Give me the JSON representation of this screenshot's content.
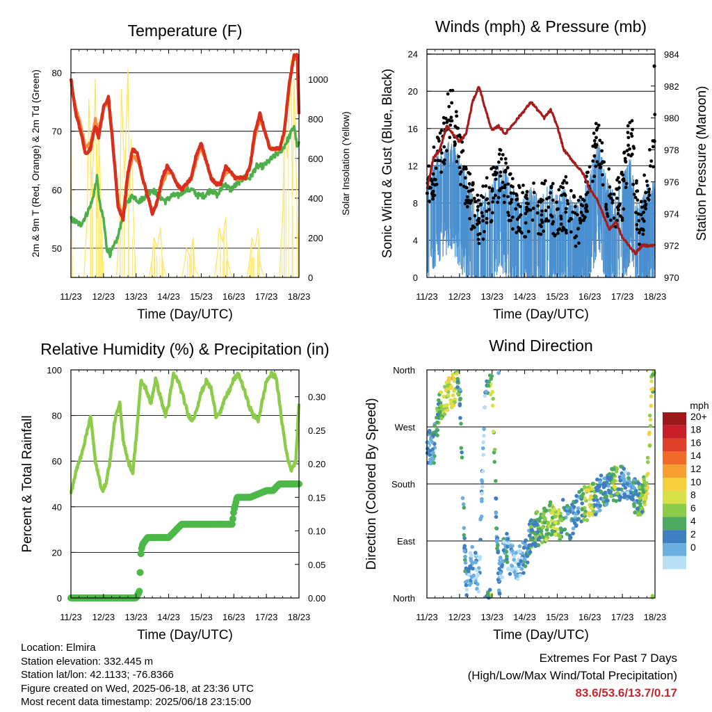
{
  "colors": {
    "temp_red": "#d7301f",
    "temp_orange": "#fb8c3c",
    "td_green": "#4daf4a",
    "solar_yellow": "#ffe45c",
    "gust_black": "#000000",
    "wind_blue": "#4a90d0",
    "pressure_maroon": "#a51c1c",
    "rh_green": "#8ccc4a",
    "rain_green": "#4cb848"
  },
  "chart_data": [
    {
      "type": "line",
      "title": "Temperature (F)",
      "xlabel": "Time (Day/UTC)",
      "ylabel": "2m & 9m T (Red, Orange) & 2m Td (Green)",
      "ylabel_right": "Solar Insolation (Yellow)",
      "x_ticks": [
        "11/23",
        "12/23",
        "13/23",
        "14/23",
        "15/23",
        "16/23",
        "17/23",
        "18/23"
      ],
      "ylim": [
        45,
        84
      ],
      "y_ticks": [
        50,
        60,
        70,
        80
      ],
      "ylim_right": [
        0,
        1150
      ],
      "y_ticks_right": [
        0,
        200,
        400,
        600,
        800,
        1000
      ],
      "grid": true,
      "series": [
        {
          "role": "temp_2m",
          "x": [
            0,
            0.15,
            0.3,
            0.45,
            0.6,
            0.75,
            0.85,
            1.0,
            1.15,
            1.3,
            1.45,
            1.6,
            1.75,
            1.9,
            2.05,
            2.2,
            2.35,
            2.5,
            2.65,
            2.8,
            2.95,
            3.1,
            3.25,
            3.4,
            3.55,
            3.7,
            3.85,
            4.0,
            4.15,
            4.3,
            4.45,
            4.6,
            4.75,
            4.9,
            5.05,
            5.2,
            5.35,
            5.5,
            5.65,
            5.8,
            5.95,
            6.1,
            6.25,
            6.4,
            6.55,
            6.7,
            6.85,
            6.95,
            7.0
          ],
          "values": [
            79,
            73,
            70,
            66,
            67,
            71,
            69,
            74,
            76,
            67,
            57,
            55,
            63,
            67,
            66,
            62,
            59,
            56,
            58,
            62,
            64,
            63,
            61,
            60,
            61,
            62,
            66,
            68,
            65,
            62,
            61,
            61,
            64,
            63,
            62,
            62,
            62,
            64,
            70,
            73,
            70,
            67,
            67,
            67,
            70,
            78,
            83,
            83,
            73
          ]
        },
        {
          "role": "temp_9m",
          "x": [
            0,
            0.15,
            0.3,
            0.45,
            0.6,
            0.75,
            0.85,
            1.0,
            1.15,
            1.3,
            1.45,
            1.6,
            1.75,
            1.9,
            2.05,
            2.2,
            2.35,
            2.5,
            2.65,
            2.8,
            2.95,
            3.1,
            3.25,
            3.4,
            3.55,
            3.7,
            3.85,
            4.0,
            4.15,
            4.3,
            4.45,
            4.6,
            4.75,
            4.9,
            5.05,
            5.2,
            5.35,
            5.5,
            5.65,
            5.8,
            5.95,
            6.1,
            6.25,
            6.4,
            6.55,
            6.7,
            6.85,
            6.95,
            7.0
          ],
          "values": [
            78,
            74,
            71,
            67,
            68,
            72,
            70,
            74,
            75,
            67,
            58,
            55,
            62,
            66,
            65,
            62,
            59,
            56,
            58,
            61,
            63,
            63,
            61,
            60,
            61,
            62,
            65,
            67,
            65,
            62,
            61,
            61,
            63,
            63,
            62,
            62,
            62,
            64,
            69,
            72,
            70,
            67,
            67,
            67,
            70,
            78,
            83,
            82,
            73
          ]
        },
        {
          "role": "dewpoint_2m",
          "x": [
            0,
            0.3,
            0.5,
            0.65,
            0.8,
            0.9,
            1.0,
            1.1,
            1.2,
            1.3,
            1.45,
            1.6,
            1.75,
            1.9,
            2.1,
            2.3,
            2.5,
            2.7,
            2.9,
            3.1,
            3.3,
            3.5,
            3.7,
            3.9,
            4.1,
            4.3,
            4.5,
            4.7,
            4.9,
            5.1,
            5.3,
            5.5,
            5.7,
            5.9,
            6.1,
            6.3,
            6.5,
            6.7,
            6.85,
            6.95,
            7.0
          ],
          "values": [
            55,
            54,
            56,
            58,
            62,
            57,
            55,
            50,
            49,
            50,
            52,
            56,
            58,
            59,
            58,
            59,
            60,
            59,
            58,
            59,
            59,
            60,
            60,
            59,
            59,
            60,
            59,
            61,
            60,
            61,
            62,
            62,
            64,
            64,
            65,
            66,
            67,
            69,
            71,
            67,
            68
          ]
        },
        {
          "role": "solar_insolation",
          "x": [
            0,
            0.05,
            0.25,
            0.4,
            0.5,
            0.55,
            0.65,
            0.75,
            0.8,
            0.85,
            0.95,
            1.0,
            1.2,
            1.4,
            1.5,
            1.55,
            1.65,
            1.75,
            1.8,
            1.85,
            1.95,
            2.0,
            2.2,
            2.4,
            2.5,
            2.55,
            2.65,
            2.75,
            2.8,
            2.85,
            2.95,
            3.0,
            3.2,
            3.4,
            3.5,
            3.55,
            3.65,
            3.75,
            3.8,
            3.85,
            3.95,
            4.0,
            4.2,
            4.4,
            4.5,
            4.55,
            4.65,
            4.75,
            4.8,
            4.85,
            4.95,
            5.0,
            5.2,
            5.4,
            5.5,
            5.55,
            5.65,
            5.75,
            5.8,
            5.85,
            5.95,
            6.0,
            6.2,
            6.4,
            6.5,
            6.55,
            6.65,
            6.75,
            6.8,
            6.85,
            6.95,
            7.0
          ],
          "values": [
            700,
            0,
            0,
            0,
            300,
            900,
            400,
            1000,
            300,
            800,
            200,
            0,
            0,
            0,
            300,
            950,
            500,
            1050,
            400,
            700,
            150,
            0,
            0,
            0,
            100,
            200,
            150,
            250,
            100,
            50,
            0,
            0,
            0,
            0,
            80,
            150,
            100,
            200,
            50,
            30,
            0,
            0,
            0,
            0,
            120,
            250,
            180,
            300,
            100,
            50,
            0,
            0,
            0,
            0,
            100,
            200,
            150,
            250,
            80,
            40,
            0,
            0,
            0,
            0,
            300,
            800,
            600,
            1100,
            400,
            1000,
            300,
            0
          ]
        }
      ]
    },
    {
      "type": "scatter",
      "title": "Winds (mph) & Pressure (mb)",
      "xlabel": "Time (Day/UTC)",
      "ylabel": "Sonic Wind & Gust (Blue, Black)",
      "ylabel_right": "Station Pressure (Maroon)",
      "x_ticks": [
        "11/23",
        "12/23",
        "13/23",
        "14/23",
        "15/23",
        "16/23",
        "17/23",
        "18/23"
      ],
      "ylim": [
        0,
        24.5
      ],
      "y_ticks": [
        0,
        4,
        8,
        12,
        16,
        20,
        24
      ],
      "ylim_right": [
        970,
        984.3
      ],
      "y_ticks_right": [
        970,
        972,
        974,
        976,
        978,
        980,
        982,
        984
      ],
      "grid": true,
      "series": [
        {
          "role": "wind",
          "x": [
            0,
            0.25,
            0.5,
            0.75,
            1.0,
            1.25,
            1.5,
            1.75,
            2.0,
            2.25,
            2.5,
            2.75,
            3.0,
            3.25,
            3.5,
            3.75,
            4.0,
            4.25,
            4.5,
            4.75,
            5.0,
            5.25,
            5.5,
            5.75,
            6.0,
            6.25,
            6.5,
            6.75,
            7.0
          ],
          "values": [
            6,
            8,
            9,
            10,
            8,
            6,
            3,
            4,
            5,
            8,
            6,
            4,
            4,
            5,
            4,
            5,
            4,
            5,
            3,
            4,
            6,
            10,
            6,
            4,
            6,
            8,
            3,
            5,
            6
          ]
        },
        {
          "role": "gust",
          "x": [
            0,
            0.25,
            0.5,
            0.75,
            1.0,
            1.25,
            1.5,
            1.75,
            2.0,
            2.25,
            2.5,
            2.75,
            3.0,
            3.25,
            3.5,
            3.75,
            4.0,
            4.25,
            4.5,
            4.75,
            5.0,
            5.25,
            5.5,
            5.75,
            6.0,
            6.25,
            6.5,
            6.75,
            7.0
          ],
          "values": [
            9,
            12,
            14,
            19,
            13,
            10,
            6,
            7,
            9,
            12,
            9,
            7,
            7,
            8,
            7,
            8,
            7,
            8,
            6,
            7,
            10,
            15,
            10,
            7,
            9,
            16,
            6,
            9,
            15
          ]
        },
        {
          "role": "pressure",
          "x": [
            0,
            0.2,
            0.4,
            0.6,
            0.8,
            1.0,
            1.2,
            1.4,
            1.6,
            1.8,
            2.0,
            2.2,
            2.4,
            2.6,
            2.8,
            3.0,
            3.2,
            3.4,
            3.6,
            3.8,
            4.0,
            4.2,
            4.4,
            4.6,
            4.8,
            5.0,
            5.2,
            5.4,
            5.6,
            5.8,
            6.0,
            6.2,
            6.4,
            6.6,
            6.8,
            7.0
          ],
          "values": [
            975.5,
            977.5,
            978,
            979.5,
            979,
            978.5,
            979,
            981,
            982,
            980.5,
            979.2,
            979.5,
            979,
            979.5,
            980,
            980.5,
            981,
            980.5,
            980,
            980.5,
            979.5,
            978,
            977.5,
            977,
            976.5,
            975.5,
            975,
            974,
            973,
            973.5,
            972.5,
            972,
            971.5,
            972,
            972,
            972
          ]
        }
      ]
    },
    {
      "type": "line",
      "title": "Relative Humidity (%) & Precipitation (in)",
      "xlabel": "Time (Day/UTC)",
      "ylabel": "Percent & Total Rainfall",
      "x_ticks": [
        "11/23",
        "12/23",
        "13/23",
        "14/23",
        "15/23",
        "16/23",
        "17/23",
        "18/23"
      ],
      "ylim": [
        0,
        100
      ],
      "y_ticks": [
        0,
        20,
        40,
        60,
        80,
        100
      ],
      "ylim_right": [
        0,
        0.34
      ],
      "y_ticks_right": [
        "0.00",
        "0.05",
        "0.10",
        "0.15",
        "0.20",
        "0.25",
        "0.30"
      ],
      "grid": true,
      "series": [
        {
          "role": "relative_humidity",
          "x": [
            0,
            0.15,
            0.3,
            0.45,
            0.6,
            0.75,
            0.9,
            1.0,
            1.1,
            1.2,
            1.35,
            1.5,
            1.6,
            1.75,
            1.9,
            2.0,
            2.15,
            2.3,
            2.45,
            2.6,
            2.75,
            2.9,
            3.0,
            3.15,
            3.3,
            3.45,
            3.6,
            3.75,
            3.9,
            4.0,
            4.15,
            4.3,
            4.45,
            4.6,
            4.75,
            4.9,
            5.0,
            5.15,
            5.3,
            5.45,
            5.6,
            5.75,
            5.9,
            6.0,
            6.15,
            6.3,
            6.45,
            6.6,
            6.75,
            6.9,
            7.0
          ],
          "values": [
            46,
            55,
            62,
            70,
            80,
            60,
            50,
            47,
            52,
            60,
            78,
            85,
            70,
            60,
            55,
            70,
            95,
            92,
            85,
            96,
            88,
            80,
            85,
            98,
            95,
            88,
            80,
            78,
            85,
            90,
            95,
            92,
            80,
            82,
            88,
            92,
            96,
            98,
            92,
            85,
            80,
            78,
            88,
            95,
            98,
            97,
            80,
            65,
            56,
            60,
            85
          ]
        },
        {
          "role": "precipitation_total",
          "x": [
            0,
            1.5,
            2.0,
            2.1,
            2.15,
            2.2,
            2.35,
            2.5,
            3.0,
            3.2,
            3.4,
            4.0,
            4.5,
            4.95,
            5.0,
            5.1,
            5.5,
            6.0,
            6.2,
            6.4,
            7.0
          ],
          "values": [
            0,
            0,
            0,
            0.01,
            0.07,
            0.08,
            0.09,
            0.09,
            0.09,
            0.1,
            0.11,
            0.11,
            0.11,
            0.11,
            0.13,
            0.15,
            0.15,
            0.16,
            0.16,
            0.17,
            0.17
          ]
        }
      ]
    },
    {
      "type": "scatter",
      "title": "Wind Direction",
      "xlabel": "Time (Day/UTC)",
      "ylabel": "Direction (Colored By Speed)",
      "x_ticks": [
        "11/23",
        "12/23",
        "13/23",
        "14/23",
        "15/23",
        "16/23",
        "17/23",
        "18/23"
      ],
      "y_ticks": [
        "North",
        "East",
        "South",
        "West",
        "North"
      ],
      "ylim": [
        0,
        360
      ],
      "grid": true,
      "colorbar": {
        "title": "mph",
        "labels": [
          "20+",
          "18",
          "16",
          "14",
          "12",
          "10",
          "8",
          "6",
          "4",
          "2",
          "0"
        ],
        "colors": [
          "#9e1a1a",
          "#c8202a",
          "#e0402a",
          "#f26a2a",
          "#f5a030",
          "#f7d040",
          "#d8e048",
          "#8ccc4a",
          "#4da860",
          "#3f7fc0",
          "#6baee0",
          "#b7e0f5"
        ]
      },
      "series": [
        {
          "role": "direction",
          "x": [
            0.1,
            0.2,
            0.4,
            0.6,
            0.8,
            1.0,
            1.2,
            1.4,
            1.6,
            1.8,
            2.0,
            2.2,
            2.4,
            2.6,
            2.8,
            3.0,
            3.2,
            3.4,
            3.6,
            3.8,
            4.0,
            4.2,
            4.4,
            4.6,
            4.8,
            5.0,
            5.2,
            5.4,
            5.6,
            5.8,
            6.0,
            6.2,
            6.4,
            6.6,
            6.8,
            6.9
          ],
          "values": [
            240,
            235,
            300,
            320,
            330,
            340,
            20,
            60,
            30,
            350,
            345,
            20,
            80,
            60,
            50,
            70,
            100,
            110,
            115,
            125,
            110,
            130,
            120,
            140,
            150,
            150,
            160,
            170,
            175,
            180,
            180,
            170,
            160,
            150,
            200,
            350
          ],
          "speeds": [
            4,
            5,
            8,
            10,
            12,
            6,
            4,
            3,
            2,
            4,
            10,
            3,
            4,
            3,
            2,
            5,
            6,
            7,
            8,
            9,
            10,
            6,
            5,
            4,
            8,
            12,
            5,
            4,
            6,
            9,
            3,
            4,
            6,
            8,
            12,
            10
          ]
        }
      ]
    }
  ],
  "info": {
    "location": "Location: Elmira",
    "elevation": "Station elevation: 332.445 m",
    "latlon": "Station lat/lon: 42.1133; -76.8366",
    "created": "Figure created on Wed, 2025-06-18, at 23:36 UTC",
    "recent": "Most recent data timestamp: 2025/06/18 23:15:00"
  },
  "extremes": {
    "line1": "Extremes For Past 7 Days",
    "line2": "(High/Low/Max Wind/Total Precipitation)",
    "values": "83.6/53.6/13.7/0.17"
  }
}
